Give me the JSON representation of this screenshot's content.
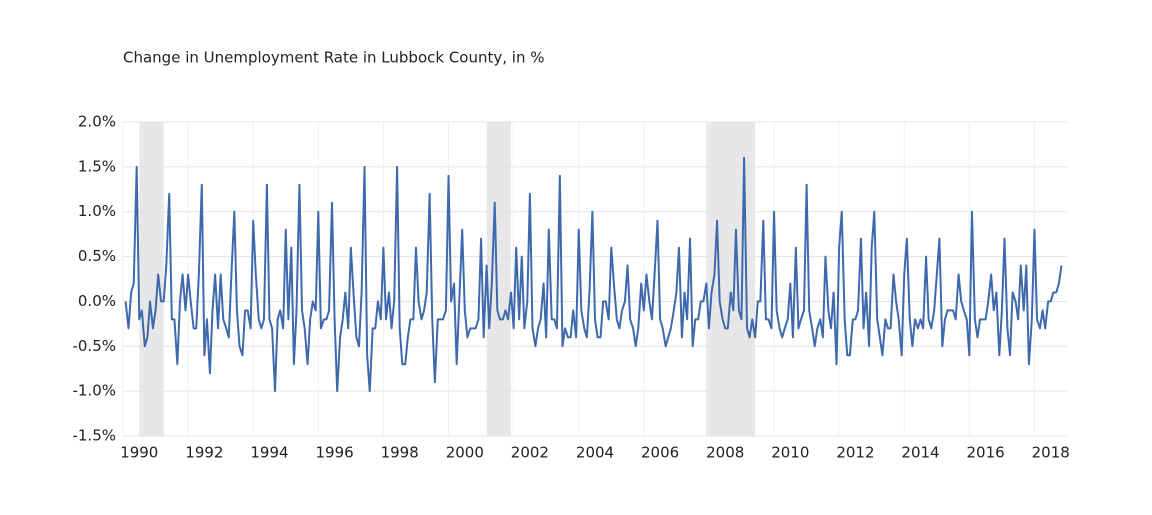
{
  "chart_data": {
    "type": "line",
    "title": "Change in Unemployment Rate in Lubbock County, in %",
    "color": "#3e6aad",
    "shade_color": "#e7e7e7",
    "grid": true,
    "xlim": [
      1990,
      2019
    ],
    "xticks": [
      1990,
      1992,
      1994,
      1996,
      1998,
      2000,
      2002,
      2004,
      2006,
      2008,
      2010,
      2012,
      2014,
      2016,
      2018
    ],
    "ylim": [
      -1.5,
      2.0
    ],
    "yticks": [
      {
        "value": -1.5,
        "label": "-1.5%"
      },
      {
        "value": -1.0,
        "label": "-1.0%"
      },
      {
        "value": -0.5,
        "label": "-0.5%"
      },
      {
        "value": 0,
        "label": "0.0%"
      },
      {
        "value": 0.5,
        "label": "0.5%"
      },
      {
        "value": 1.0,
        "label": "1.0%"
      },
      {
        "value": 1.5,
        "label": "1.5%"
      },
      {
        "value": 2.0,
        "label": "2.0%"
      }
    ],
    "shaded_periods": [
      [
        1990.5,
        1991.25
      ],
      [
        2001.17,
        2001.92
      ],
      [
        2007.92,
        2009.42
      ]
    ],
    "x": [
      1990.08,
      1990.17,
      1990.25,
      1990.33,
      1990.42,
      1990.5,
      1990.58,
      1990.67,
      1990.75,
      1990.83,
      1990.92,
      1991,
      1991.08,
      1991.17,
      1991.25,
      1991.33,
      1991.42,
      1991.5,
      1991.58,
      1991.67,
      1991.75,
      1991.83,
      1991.92,
      1992,
      1992.08,
      1992.17,
      1992.25,
      1992.33,
      1992.42,
      1992.5,
      1992.58,
      1992.67,
      1992.75,
      1992.83,
      1992.92,
      1993,
      1993.08,
      1993.17,
      1993.25,
      1993.33,
      1993.42,
      1993.5,
      1993.58,
      1993.67,
      1993.75,
      1993.83,
      1993.92,
      1994,
      1994.08,
      1994.17,
      1994.25,
      1994.33,
      1994.42,
      1994.5,
      1994.58,
      1994.67,
      1994.75,
      1994.83,
      1994.92,
      1995,
      1995.08,
      1995.17,
      1995.25,
      1995.33,
      1995.42,
      1995.5,
      1995.58,
      1995.67,
      1995.75,
      1995.83,
      1995.92,
      1996,
      1996.08,
      1996.17,
      1996.25,
      1996.33,
      1996.42,
      1996.5,
      1996.58,
      1996.67,
      1996.75,
      1996.83,
      1996.92,
      1997,
      1997.08,
      1997.17,
      1997.25,
      1997.33,
      1997.42,
      1997.5,
      1997.58,
      1997.67,
      1997.75,
      1997.83,
      1997.92,
      1998,
      1998.08,
      1998.17,
      1998.25,
      1998.33,
      1998.42,
      1998.5,
      1998.58,
      1998.67,
      1998.75,
      1998.83,
      1998.92,
      1999,
      1999.08,
      1999.17,
      1999.25,
      1999.33,
      1999.42,
      1999.5,
      1999.58,
      1999.67,
      1999.75,
      1999.83,
      1999.92,
      2000,
      2000.08,
      2000.17,
      2000.25,
      2000.33,
      2000.42,
      2000.5,
      2000.58,
      2000.67,
      2000.75,
      2000.83,
      2000.92,
      2001,
      2001.08,
      2001.17,
      2001.25,
      2001.33,
      2001.42,
      2001.5,
      2001.58,
      2001.67,
      2001.75,
      2001.83,
      2001.92,
      2002,
      2002.08,
      2002.17,
      2002.25,
      2002.33,
      2002.42,
      2002.5,
      2002.58,
      2002.67,
      2002.75,
      2002.83,
      2002.92,
      2003,
      2003.08,
      2003.17,
      2003.25,
      2003.33,
      2003.42,
      2003.5,
      2003.58,
      2003.67,
      2003.75,
      2003.83,
      2003.92,
      2004,
      2004.08,
      2004.17,
      2004.25,
      2004.33,
      2004.42,
      2004.5,
      2004.58,
      2004.67,
      2004.75,
      2004.83,
      2004.92,
      2005,
      2005.08,
      2005.17,
      2005.25,
      2005.33,
      2005.42,
      2005.5,
      2005.58,
      2005.67,
      2005.75,
      2005.83,
      2005.92,
      2006,
      2006.08,
      2006.17,
      2006.25,
      2006.33,
      2006.42,
      2006.5,
      2006.58,
      2006.67,
      2006.75,
      2006.83,
      2006.92,
      2007,
      2007.08,
      2007.17,
      2007.25,
      2007.33,
      2007.42,
      2007.5,
      2007.58,
      2007.67,
      2007.75,
      2007.83,
      2007.92,
      2008,
      2008.08,
      2008.17,
      2008.25,
      2008.33,
      2008.42,
      2008.5,
      2008.58,
      2008.67,
      2008.75,
      2008.83,
      2008.92,
      2009,
      2009.08,
      2009.17,
      2009.25,
      2009.33,
      2009.42,
      2009.5,
      2009.58,
      2009.67,
      2009.75,
      2009.83,
      2009.92,
      2010,
      2010.08,
      2010.17,
      2010.25,
      2010.33,
      2010.42,
      2010.5,
      2010.58,
      2010.67,
      2010.75,
      2010.83,
      2010.92,
      2011,
      2011.08,
      2011.17,
      2011.25,
      2011.33,
      2011.42,
      2011.5,
      2011.58,
      2011.67,
      2011.75,
      2011.83,
      2011.92,
      2012,
      2012.08,
      2012.17,
      2012.25,
      2012.33,
      2012.42,
      2012.5,
      2012.58,
      2012.67,
      2012.75,
      2012.83,
      2012.92,
      2013,
      2013.08,
      2013.17,
      2013.25,
      2013.33,
      2013.42,
      2013.5,
      2013.58,
      2013.67,
      2013.75,
      2013.83,
      2013.92,
      2014,
      2014.08,
      2014.17,
      2014.25,
      2014.33,
      2014.42,
      2014.5,
      2014.58,
      2014.67,
      2014.75,
      2014.83,
      2014.92,
      2015,
      2015.08,
      2015.17,
      2015.25,
      2015.33,
      2015.42,
      2015.5,
      2015.58,
      2015.67,
      2015.75,
      2015.83,
      2015.92,
      2016,
      2016.08,
      2016.17,
      2016.25,
      2016.33,
      2016.42,
      2016.5,
      2016.58,
      2016.67,
      2016.75,
      2016.83,
      2016.92,
      2017,
      2017.08,
      2017.17,
      2017.25,
      2017.33,
      2017.42,
      2017.5,
      2017.58,
      2017.67,
      2017.75,
      2017.83,
      2017.92,
      2018,
      2018.08,
      2018.17,
      2018.25,
      2018.33,
      2018.42,
      2018.5,
      2018.58,
      2018.67,
      2018.75,
      2018.83
    ],
    "values": [
      0,
      -0.3,
      0.1,
      0.2,
      1.5,
      -0.2,
      -0.1,
      -0.5,
      -0.4,
      0,
      -0.3,
      -0.1,
      0.3,
      0,
      0,
      0.4,
      1.2,
      -0.2,
      -0.2,
      -0.7,
      0,
      0.3,
      -0.1,
      0.3,
      0,
      -0.3,
      -0.3,
      0.3,
      1.3,
      -0.6,
      -0.2,
      -0.8,
      -0.1,
      0.3,
      -0.3,
      0.3,
      -0.2,
      -0.3,
      -0.4,
      0.3,
      1.0,
      -0.1,
      -0.5,
      -0.6,
      -0.1,
      -0.1,
      -0.3,
      0.9,
      0.3,
      -0.2,
      -0.3,
      -0.2,
      1.3,
      -0.2,
      -0.3,
      -1.0,
      -0.2,
      -0.1,
      -0.3,
      0.8,
      -0.2,
      0.6,
      -0.7,
      -0.1,
      1.3,
      -0.1,
      -0.3,
      -0.7,
      -0.2,
      0,
      -0.1,
      1.0,
      -0.3,
      -0.2,
      -0.2,
      -0.1,
      1.1,
      -0.2,
      -1.0,
      -0.4,
      -0.2,
      0.1,
      -0.3,
      0.6,
      0.1,
      -0.4,
      -0.5,
      0.1,
      1.5,
      -0.6,
      -1.0,
      -0.3,
      -0.3,
      0,
      -0.2,
      0.6,
      -0.2,
      0.1,
      -0.3,
      0,
      1.5,
      -0.3,
      -0.7,
      -0.7,
      -0.4,
      -0.2,
      -0.2,
      0.6,
      0,
      -0.2,
      -0.1,
      0.1,
      1.2,
      -0.2,
      -0.9,
      -0.2,
      -0.2,
      -0.2,
      -0.1,
      1.4,
      0,
      0.2,
      -0.7,
      0,
      0.8,
      -0.1,
      -0.4,
      -0.3,
      -0.3,
      -0.3,
      -0.2,
      0.7,
      -0.4,
      0.4,
      -0.3,
      0.2,
      1.1,
      -0.1,
      -0.2,
      -0.2,
      -0.1,
      -0.2,
      0.1,
      -0.3,
      0.6,
      -0.2,
      0.5,
      -0.3,
      0,
      1.2,
      -0.3,
      -0.5,
      -0.3,
      -0.2,
      0.2,
      -0.4,
      0.8,
      -0.2,
      -0.2,
      -0.3,
      1.4,
      -0.5,
      -0.3,
      -0.4,
      -0.4,
      -0.1,
      -0.4,
      0.8,
      -0.1,
      -0.3,
      -0.4,
      0.1,
      1.0,
      -0.2,
      -0.4,
      -0.4,
      0,
      0,
      -0.2,
      0.6,
      0.2,
      -0.2,
      -0.3,
      -0.1,
      0,
      0.4,
      -0.2,
      -0.3,
      -0.5,
      -0.3,
      0.2,
      -0.1,
      0.3,
      0,
      -0.2,
      0.3,
      0.9,
      -0.2,
      -0.3,
      -0.5,
      -0.4,
      -0.3,
      -0.1,
      0.1,
      0.6,
      -0.4,
      0.1,
      -0.2,
      0.7,
      -0.5,
      -0.2,
      -0.2,
      0,
      0,
      0.2,
      -0.3,
      0.1,
      0.3,
      0.9,
      0,
      -0.2,
      -0.3,
      -0.3,
      0.1,
      -0.1,
      0.8,
      -0.1,
      -0.2,
      1.6,
      -0.3,
      -0.4,
      -0.2,
      -0.4,
      0,
      0,
      0.9,
      -0.2,
      -0.2,
      -0.3,
      1.0,
      -0.1,
      -0.3,
      -0.4,
      -0.3,
      -0.2,
      0.2,
      -0.4,
      0.6,
      -0.3,
      -0.2,
      -0.1,
      1.3,
      -0.1,
      -0.3,
      -0.5,
      -0.3,
      -0.2,
      -0.4,
      0.5,
      -0.1,
      -0.3,
      0.1,
      -0.7,
      0.6,
      1.0,
      -0.2,
      -0.6,
      -0.6,
      -0.2,
      -0.2,
      -0.1,
      0.7,
      -0.3,
      0.1,
      -0.5,
      0.6,
      1.0,
      -0.2,
      -0.4,
      -0.6,
      -0.2,
      -0.3,
      -0.3,
      0.3,
      0,
      -0.2,
      -0.6,
      0.3,
      0.7,
      -0.2,
      -0.5,
      -0.2,
      -0.3,
      -0.2,
      -0.3,
      0.5,
      -0.2,
      -0.3,
      -0.1,
      0.3,
      0.7,
      -0.5,
      -0.2,
      -0.1,
      -0.1,
      -0.1,
      -0.2,
      0.3,
      0,
      -0.1,
      -0.2,
      -0.6,
      1.0,
      -0.2,
      -0.4,
      -0.2,
      -0.2,
      -0.2,
      0,
      0.3,
      -0.1,
      0.1,
      -0.6,
      -0.1,
      0.7,
      -0.3,
      -0.6,
      0.1,
      0,
      -0.2,
      0.4,
      -0.1,
      0.4,
      -0.7,
      -0.2,
      0.8,
      -0.2,
      -0.3,
      -0.1,
      -0.3,
      0,
      0,
      0.1,
      0.1,
      0.2,
      0.4
    ]
  }
}
